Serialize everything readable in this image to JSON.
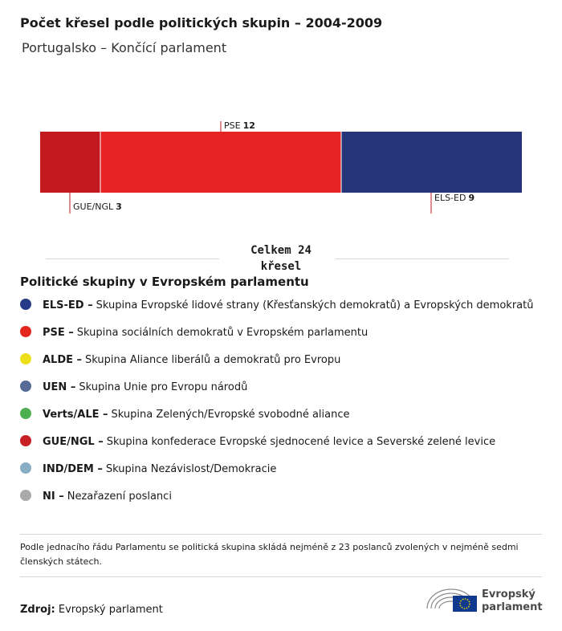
{
  "chart_data": {
    "type": "stacked-bar",
    "title": "Počet křesel podle politických skupin – 2004-2009",
    "subtitle": "Portugalsko – Končící parlament",
    "series": [
      {
        "name": "GUE/NGL",
        "color": "#c21a1f",
        "values": [
          3
        ]
      },
      {
        "name": "PSE",
        "color": "#e42322",
        "values": [
          12
        ]
      },
      {
        "name": "ELS-ED",
        "color": "#26357a",
        "values": [
          9
        ]
      }
    ],
    "total_label": "Celkem 24 křesel"
  },
  "legend": {
    "title": "Politické skupiny v Evropském parlamentu",
    "items": [
      {
        "abbr": "ELS-ED –",
        "desc": "Skupina Evropské lidové strany (Křesťanských demokratů) a Evropských demokratů",
        "color": "#273a86"
      },
      {
        "abbr": "PSE –",
        "desc": "Skupina sociálních demokratů v Evropském parlamentu",
        "color": "#e52520"
      },
      {
        "abbr": "ALDE –",
        "desc": "Skupina Aliance liberálů a demokratů pro Evropu",
        "color": "#ece01b"
      },
      {
        "abbr": "UEN –",
        "desc": "Skupina Unie pro Evropu národů",
        "color": "#566c96"
      },
      {
        "abbr": "Verts/ALE –",
        "desc": "Skupina Zelených/Evropské svobodné aliance",
        "color": "#4caf50"
      },
      {
        "abbr": "GUE/NGL –",
        "desc": "Skupina konfederace Evropské sjednocené levice a Severské zelené levice",
        "color": "#c62025"
      },
      {
        "abbr": "IND/DEM –",
        "desc": "Skupina Nezávislost/Demokracie",
        "color": "#88aec4"
      },
      {
        "abbr": "NI –",
        "desc": "Nezařazení poslanci",
        "color": "#aaaaaa"
      }
    ]
  },
  "footer": {
    "note": "Podle jednacího řádu Parlamentu se politická skupina skládá nejméně z 23 poslanců zvolených v nejméně sedmi členských státech.",
    "source_label": "Zdroj:",
    "source": "Evropský parlament",
    "logo": "Evropský parlament"
  }
}
